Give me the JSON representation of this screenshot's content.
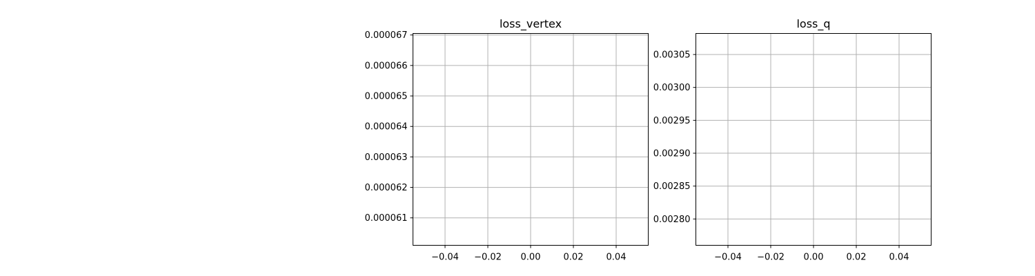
{
  "chart_data": [
    {
      "type": "line",
      "title": "loss_vertex",
      "xlabel": "",
      "ylabel": "",
      "xlim": [
        -0.055,
        0.055
      ],
      "ylim": [
        6.01e-05,
        6.705e-05
      ],
      "x_ticks": [
        -0.04,
        -0.02,
        0.0,
        0.02,
        0.04
      ],
      "x_tick_labels": [
        "−0.04",
        "−0.02",
        "0.00",
        "0.02",
        "0.04"
      ],
      "y_ticks": [
        6.1e-05,
        6.2e-05,
        6.3e-05,
        6.4e-05,
        6.5e-05,
        6.6e-05,
        6.7e-05
      ],
      "y_tick_labels": [
        "0.000061",
        "0.000062",
        "0.000063",
        "0.000064",
        "0.000065",
        "0.000066",
        "0.000067"
      ],
      "grid": true,
      "series": []
    },
    {
      "type": "line",
      "title": "loss_q",
      "xlabel": "",
      "ylabel": "",
      "xlim": [
        -0.055,
        0.055
      ],
      "ylim": [
        0.00276,
        0.003082
      ],
      "x_ticks": [
        -0.04,
        -0.02,
        0.0,
        0.02,
        0.04
      ],
      "x_tick_labels": [
        "−0.04",
        "−0.02",
        "0.00",
        "0.02",
        "0.04"
      ],
      "y_ticks": [
        0.0028,
        0.00285,
        0.0029,
        0.00295,
        0.003,
        0.00305
      ],
      "y_tick_labels": [
        "0.00280",
        "0.00285",
        "0.00290",
        "0.00295",
        "0.00300",
        "0.00305"
      ],
      "grid": true,
      "series": []
    }
  ]
}
